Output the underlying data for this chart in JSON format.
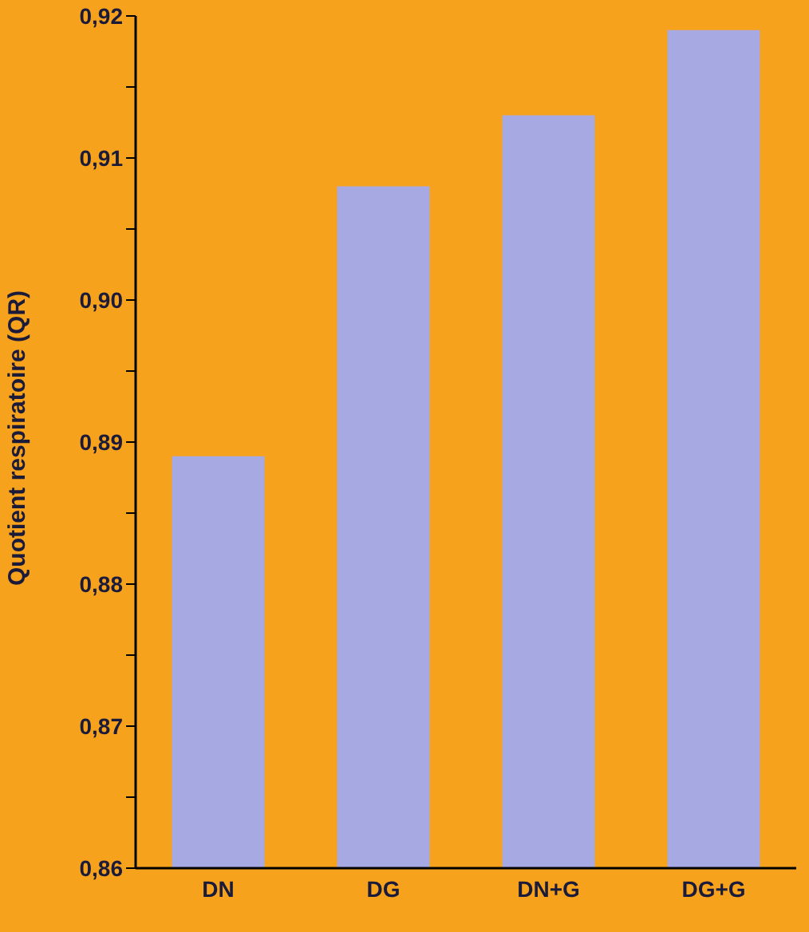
{
  "chart_data": {
    "type": "bar",
    "ylabel": "Quotient respiratoire (QR)",
    "categories": [
      "DN",
      "DG",
      "DN+G",
      "DG+G"
    ],
    "values": [
      0.889,
      0.908,
      0.913,
      0.919
    ],
    "color": "#a6a9e2",
    "ylim": [
      0.86,
      0.92
    ],
    "yticks": [
      {
        "value": 0.86,
        "label": "0,86"
      },
      {
        "value": 0.865,
        "label": null
      },
      {
        "value": 0.87,
        "label": "0,87"
      },
      {
        "value": 0.875,
        "label": null
      },
      {
        "value": 0.88,
        "label": "0,88"
      },
      {
        "value": 0.885,
        "label": null
      },
      {
        "value": 0.89,
        "label": "0,89"
      },
      {
        "value": 0.895,
        "label": null
      },
      {
        "value": 0.9,
        "label": "0,90"
      },
      {
        "value": 0.905,
        "label": null
      },
      {
        "value": 0.91,
        "label": "0,91"
      },
      {
        "value": 0.915,
        "label": null
      },
      {
        "value": 0.92,
        "label": "0,92"
      }
    ],
    "grid": false
  }
}
